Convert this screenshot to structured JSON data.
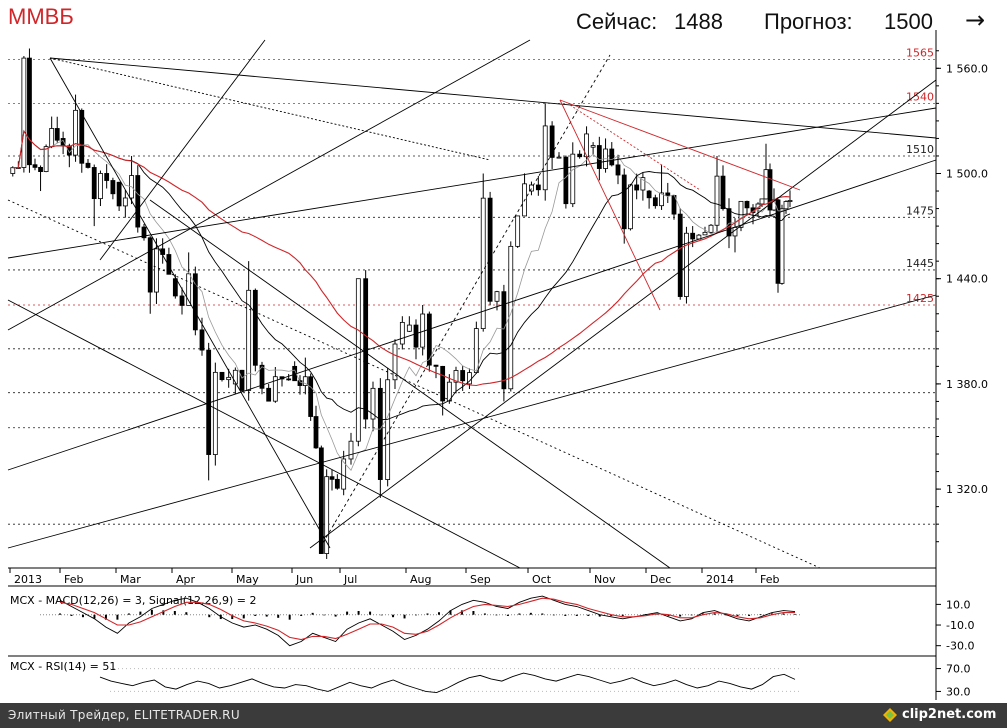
{
  "header": {
    "ticker": "ММВБ",
    "now_label": "Сейчас:",
    "now_value": "1488",
    "forecast_label": "Прогноз:",
    "forecast_value": "1500",
    "arrow_glyph": "→"
  },
  "footer": {
    "text": "Элитный Трейдер, ELITETRADER.RU",
    "brand": "clip2net.com"
  },
  "colors": {
    "red": "#d0262a",
    "grid": "#000000",
    "bull": "#ffffff",
    "bear": "#000000"
  },
  "chart_data": [
    {
      "type": "candlestick",
      "x_axis_labels": [
        "2013",
        "Feb",
        "Mar",
        "Apr",
        "May",
        "Jun",
        "Jul",
        "Aug",
        "Sep",
        "Oct",
        "Nov",
        "Dec",
        "2014",
        "Feb"
      ],
      "y_ticks": [
        1560.0,
        1500.0,
        1440.0,
        1380.0,
        1320.0
      ],
      "y_tick_labels": [
        "1 560.0",
        "1 500.0",
        "1 440.0",
        "1 380.0",
        "1 320.0"
      ],
      "ylim": [
        1275,
        1575
      ],
      "levels": [
        {
          "value": 1565,
          "label": "1565",
          "color": "red"
        },
        {
          "value": 1540,
          "label": "1540",
          "color": "red"
        },
        {
          "value": 1510,
          "label": "1510",
          "color": "black"
        },
        {
          "value": 1475,
          "label": "1475",
          "color": "black"
        },
        {
          "value": 1445,
          "label": "1445",
          "color": "black"
        },
        {
          "value": 1425,
          "label": "1425",
          "color": "red"
        },
        {
          "value": 1400,
          "label": "",
          "color": "black"
        },
        {
          "value": 1375,
          "label": "",
          "color": "black"
        },
        {
          "value": 1355,
          "label": "",
          "color": "black"
        },
        {
          "value": 1300,
          "label": "",
          "color": "black"
        }
      ],
      "monthly_closes": [
        {
          "month": "Jan 2013",
          "open": 1500,
          "high": 1567,
          "low": 1490,
          "close": 1520
        },
        {
          "month": "Feb 2013",
          "open": 1520,
          "high": 1545,
          "low": 1470,
          "close": 1495
        },
        {
          "month": "Mar 2013",
          "open": 1495,
          "high": 1510,
          "low": 1420,
          "close": 1440
        },
        {
          "month": "Apr 2013",
          "open": 1440,
          "high": 1455,
          "low": 1325,
          "close": 1380
        },
        {
          "month": "May 2013",
          "open": 1380,
          "high": 1450,
          "low": 1370,
          "close": 1390
        },
        {
          "month": "Jun 2013",
          "open": 1390,
          "high": 1395,
          "low": 1283,
          "close": 1320
        },
        {
          "month": "Jul 2013",
          "open": 1320,
          "high": 1440,
          "low": 1315,
          "close": 1410
        },
        {
          "month": "Aug 2013",
          "open": 1410,
          "high": 1425,
          "low": 1362,
          "close": 1380
        },
        {
          "month": "Sep 2013",
          "open": 1380,
          "high": 1500,
          "low": 1370,
          "close": 1490
        },
        {
          "month": "Oct 2013",
          "open": 1490,
          "high": 1540,
          "low": 1480,
          "close": 1515
        },
        {
          "month": "Nov 2013",
          "open": 1515,
          "high": 1520,
          "low": 1460,
          "close": 1490
        },
        {
          "month": "Dec 2013",
          "open": 1490,
          "high": 1505,
          "low": 1428,
          "close": 1465
        },
        {
          "month": "Jan 2014",
          "open": 1465,
          "high": 1510,
          "low": 1455,
          "close": 1480
        },
        {
          "month": "Feb 2014",
          "open": 1480,
          "high": 1517,
          "low": 1432,
          "close": 1488
        }
      ]
    },
    {
      "type": "line",
      "title": "MCX - MACD(12,26) = 3, Signal(12,26,9) = 2",
      "y_tick_labels": [
        "10.0",
        "-10.0",
        "-30.0"
      ],
      "y_ticks": [
        10,
        -10,
        -30
      ],
      "ylim": [
        -40,
        22
      ],
      "series": [
        {
          "name": "MACD(12,26)",
          "values": [
            14,
            8,
            2,
            -4,
            -12,
            -18,
            -8,
            -2,
            6,
            10,
            14,
            16,
            12,
            6,
            -2,
            -8,
            -12,
            -10,
            -14,
            -20,
            -30,
            -26,
            -18,
            -22,
            -26,
            -14,
            -8,
            -4,
            -10,
            -16,
            -24,
            -20,
            -14,
            -6,
            4,
            10,
            14,
            12,
            8,
            6,
            12,
            16,
            18,
            14,
            10,
            8,
            4,
            0,
            -2,
            -4,
            -2,
            0,
            2,
            -2,
            -6,
            -4,
            2,
            4,
            0,
            -4,
            -6,
            -2,
            2,
            4,
            3
          ]
        },
        {
          "name": "Signal(12,26,9)",
          "values": [
            12,
            10,
            6,
            2,
            -4,
            -10,
            -10,
            -7,
            -2,
            3,
            8,
            12,
            12,
            10,
            5,
            -1,
            -6,
            -8,
            -11,
            -15,
            -22,
            -24,
            -21,
            -21,
            -23,
            -19,
            -14,
            -9,
            -9,
            -12,
            -18,
            -19,
            -16,
            -10,
            -3,
            3,
            8,
            10,
            9,
            8,
            10,
            13,
            16,
            15,
            12,
            10,
            6,
            3,
            0,
            -2,
            -2,
            -1,
            1,
            0,
            -3,
            -3,
            0,
            2,
            1,
            -2,
            -4,
            -3,
            0,
            2,
            2
          ]
        }
      ]
    },
    {
      "type": "line",
      "title": "MCX - RSI(14) = 51",
      "y_tick_labels": [
        "70.0",
        "30.0"
      ],
      "y_ticks": [
        70,
        30
      ],
      "ylim": [
        15,
        85
      ],
      "series": [
        {
          "name": "RSI(14)",
          "values": [
            55,
            48,
            44,
            40,
            46,
            50,
            38,
            34,
            42,
            48,
            44,
            36,
            40,
            46,
            52,
            44,
            38,
            36,
            42,
            40,
            34,
            30,
            38,
            46,
            40,
            36,
            44,
            50,
            42,
            36,
            30,
            28,
            36,
            46,
            54,
            58,
            52,
            48,
            56,
            62,
            58,
            52,
            48,
            54,
            60,
            56,
            50,
            44,
            48,
            54,
            46,
            40,
            44,
            50,
            42,
            36,
            40,
            48,
            44,
            38,
            34,
            42,
            56,
            60,
            51
          ]
        }
      ]
    }
  ]
}
